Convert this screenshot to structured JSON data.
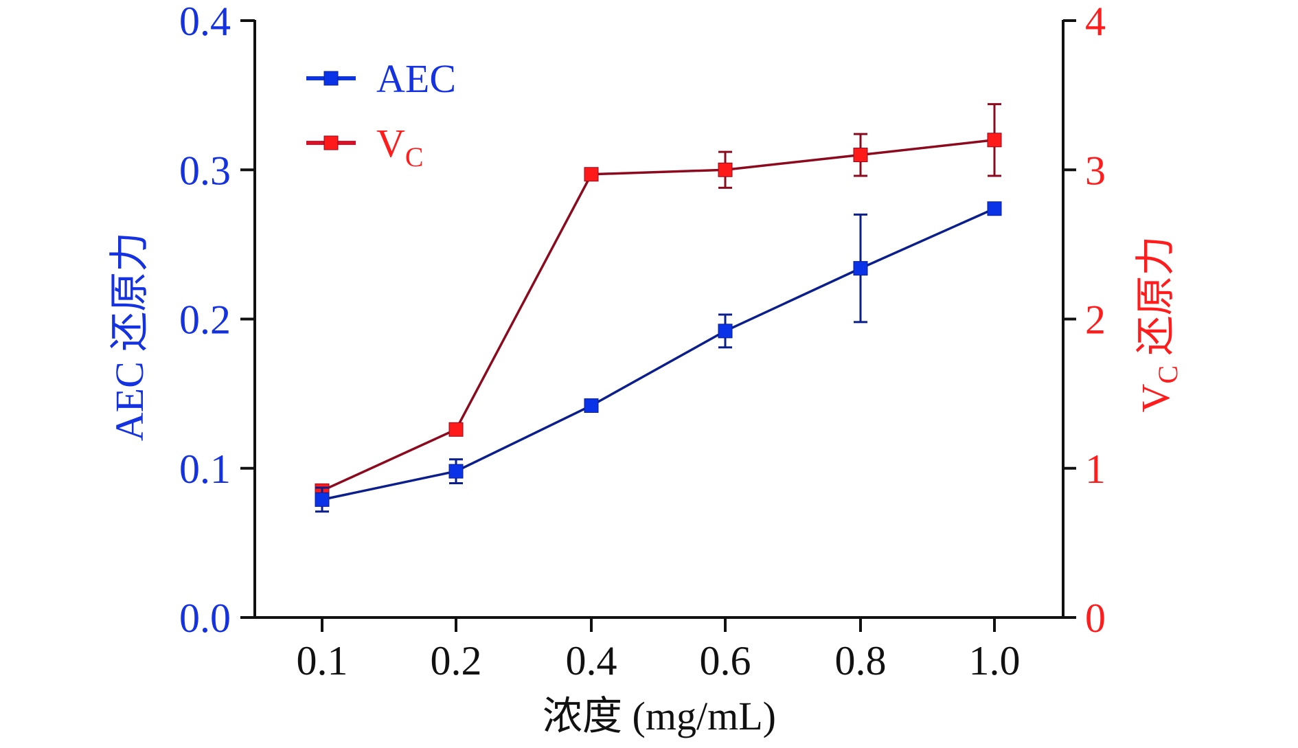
{
  "chart_data": {
    "type": "line",
    "title": "",
    "xlabel": "浓度 (mg/mL)",
    "ylabel_left": {
      "prefix": "AEC",
      "suffix": " 还原力"
    },
    "ylabel_right": {
      "prefix": "V",
      "sub": "C",
      "suffix": " 还原力"
    },
    "categories": [
      "0.1",
      "0.2",
      "0.4",
      "0.6",
      "0.8",
      "1.0"
    ],
    "y_left": {
      "range": [
        0,
        0.4
      ],
      "ticks": [
        "0.0",
        "0.1",
        "0.2",
        "0.3",
        "0.4"
      ],
      "tick_values": [
        0,
        0.1,
        0.2,
        0.3,
        0.4
      ],
      "color": "#1432e0"
    },
    "y_right": {
      "range": [
        0,
        4
      ],
      "ticks": [
        "0",
        "1",
        "2",
        "3",
        "4"
      ],
      "tick_values": [
        0,
        1,
        2,
        3,
        4
      ],
      "color": "#ff1c1c"
    },
    "grid": false,
    "legend_position": "top-left",
    "series": [
      {
        "name": "AEC",
        "axis": "left",
        "color": "#0a32e6",
        "line_color": "#0b1f8c",
        "values": [
          0.079,
          0.098,
          0.142,
          0.192,
          0.234,
          0.274
        ],
        "errors": [
          0.008,
          0.008,
          0.004,
          0.011,
          0.036,
          0.0
        ]
      },
      {
        "name": "V",
        "name_sub": "C",
        "axis": "right",
        "color": "#ff1a1a",
        "line_color": "#8c0a1e",
        "values": [
          0.85,
          1.26,
          2.97,
          3.0,
          3.1,
          3.2
        ],
        "errors": [
          0.0,
          0.0,
          0.0,
          0.12,
          0.14,
          0.24
        ]
      }
    ]
  }
}
